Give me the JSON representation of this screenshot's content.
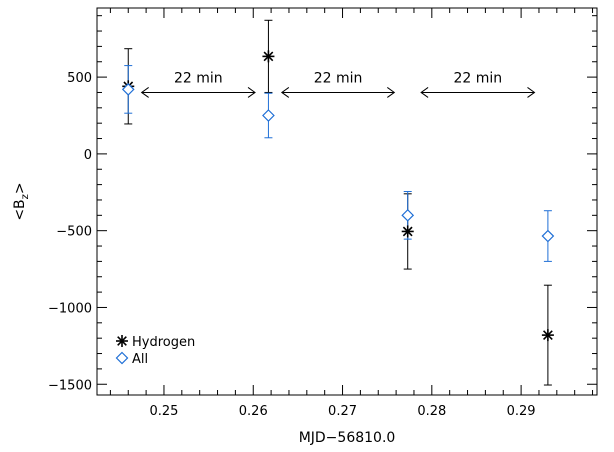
{
  "chart_data": {
    "type": "scatter",
    "title": "",
    "xlabel": "MJD−56810.0",
    "ylabel_main": "<B",
    "ylabel_sub": "z",
    "ylabel_end": ">",
    "xlim": [
      0.2425,
      0.2985
    ],
    "ylim": [
      -1570,
      950
    ],
    "xticks": [
      0.25,
      0.26,
      0.27,
      0.28,
      0.29
    ],
    "xtick_labels": [
      "0.25",
      "0.26",
      "0.27",
      "0.28",
      "0.29"
    ],
    "yticks": [
      500,
      0,
      -500,
      -1000,
      -1500
    ],
    "ytick_labels": [
      "500",
      "0",
      "−500",
      "−1000",
      "−1500"
    ],
    "series": [
      {
        "name": "Hydrogen",
        "marker": "asterisk",
        "color": "#000000",
        "points": [
          {
            "x": 0.246,
            "y": 440,
            "err": 245
          },
          {
            "x": 0.2617,
            "y": 635,
            "err": 235
          },
          {
            "x": 0.2773,
            "y": -505,
            "err": 245
          },
          {
            "x": 0.293,
            "y": -1180,
            "err": 325
          }
        ]
      },
      {
        "name": "All",
        "marker": "diamond",
        "color": "#1f6fd6",
        "points": [
          {
            "x": 0.246,
            "y": 420,
            "err": 155
          },
          {
            "x": 0.2617,
            "y": 250,
            "err": 145
          },
          {
            "x": 0.2773,
            "y": -400,
            "err": 155
          },
          {
            "x": 0.293,
            "y": -535,
            "err": 165
          }
        ]
      }
    ],
    "annotations": [
      {
        "text": "22 min",
        "x_start": 0.2475,
        "x_end": 0.2602,
        "y": 400
      },
      {
        "text": "22 min",
        "x_start": 0.2632,
        "x_end": 0.2758,
        "y": 400
      },
      {
        "text": "22 min",
        "x_start": 0.2788,
        "x_end": 0.2915,
        "y": 400
      }
    ],
    "legend": {
      "placement": "bottom-left",
      "entries": [
        "Hydrogen",
        "All"
      ]
    },
    "grid": false
  }
}
